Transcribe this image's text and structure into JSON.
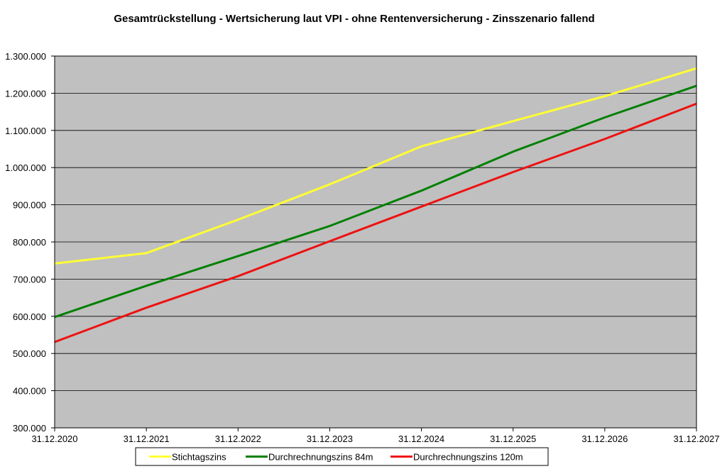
{
  "chart_data": {
    "type": "line",
    "title": "Gesamtrückstellung - Wertsicherung laut VPI - ohne Rentenversicherung - Zinsszenario fallend",
    "xlabel": "",
    "ylabel": "",
    "categories": [
      "31.12.2020",
      "31.12.2021",
      "31.12.2022",
      "31.12.2023",
      "31.12.2024",
      "31.12.2025",
      "31.12.2026",
      "31.12.2027"
    ],
    "ylim": [
      300000,
      1300000
    ],
    "yticks": [
      300000,
      400000,
      500000,
      600000,
      700000,
      800000,
      900000,
      1000000,
      1100000,
      1200000,
      1300000
    ],
    "ytick_labels": [
      "300.000",
      "400.000",
      "500.000",
      "600.000",
      "700.000",
      "800.000",
      "900.000",
      "1.000.000",
      "1.100.000",
      "1.200.000",
      "1.300.000"
    ],
    "grid": true,
    "legend_position": "bottom",
    "plot_background": "#c0c0c0",
    "series": [
      {
        "name": "Stichtagszins",
        "color": "#ffff33",
        "values": [
          742000,
          770000,
          860000,
          955000,
          1057000,
          1125000,
          1192000,
          1267000
        ]
      },
      {
        "name": "Durchrechnungszins 84m",
        "color": "#008000",
        "values": [
          598000,
          682000,
          762000,
          843000,
          938000,
          1043000,
          1135000,
          1220000
        ]
      },
      {
        "name": "Durchrechnungszins 120m",
        "color": "#ee1111",
        "values": [
          531000,
          623000,
          708000,
          802000,
          895000,
          988000,
          1077000,
          1172000
        ]
      }
    ]
  }
}
